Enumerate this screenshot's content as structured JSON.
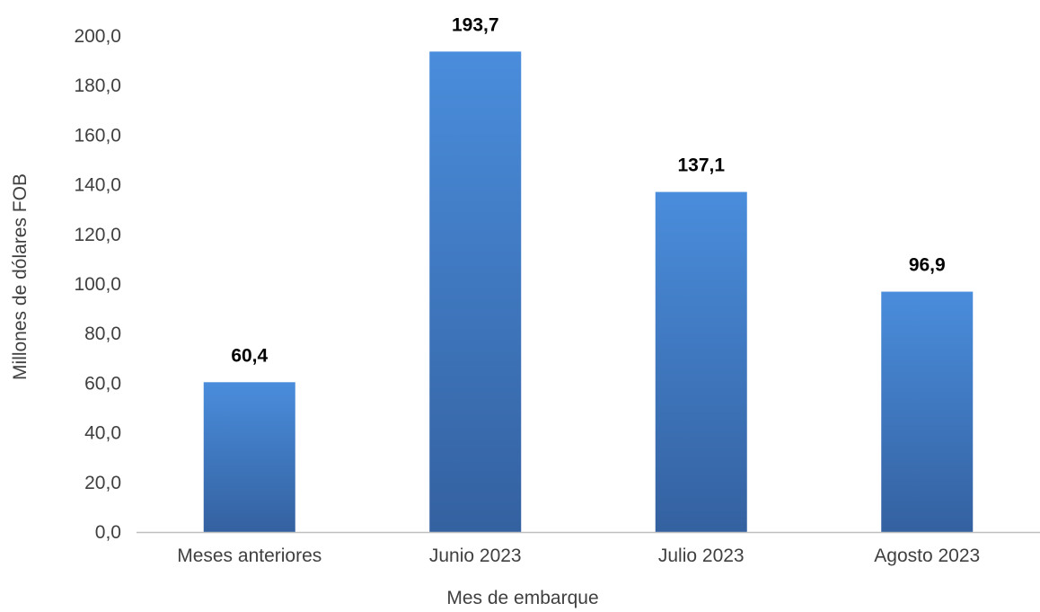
{
  "chart_data": {
    "type": "bar",
    "categories": [
      "Meses anteriores",
      "Junio 2023",
      "Julio 2023",
      "Agosto 2023"
    ],
    "values": [
      60.4,
      193.7,
      137.1,
      96.9
    ],
    "value_labels": [
      "60,4",
      "193,7",
      "137,1",
      "96,9"
    ],
    "title": "",
    "xlabel": "Mes de embarque",
    "ylabel": "Millones de dólares FOB",
    "ylim": [
      0,
      200
    ],
    "yticks": [
      0,
      20,
      40,
      60,
      80,
      100,
      120,
      140,
      160,
      180,
      200
    ],
    "ytick_labels": [
      "0,0",
      "20,0",
      "40,0",
      "60,0",
      "80,0",
      "100,0",
      "120,0",
      "140,0",
      "160,0",
      "180,0",
      "200,0"
    ],
    "grid": false,
    "legend": "none",
    "colors": {
      "bar_top": "#4a8ddc",
      "bar_bottom": "#3461a0",
      "axis_line": "#bfbfbf",
      "text": "#404040",
      "data_label": "#000000"
    }
  }
}
